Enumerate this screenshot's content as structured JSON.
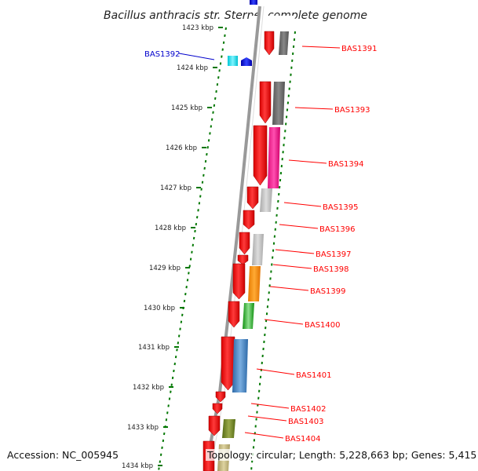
{
  "title": "Bacillus anthracis str. Sterne, complete genome",
  "footer": {
    "accession": "Accession: NC_005945",
    "topology": "Topology: circular; Length: 5,228,663 bp; Genes: 5,415"
  },
  "colors": {
    "gene_forward": "#ff0000",
    "reverse_label": "#0000cc",
    "tick": "#007700",
    "backbone": "#888888"
  },
  "ticks": [
    "1423 kbp",
    "1424 kbp",
    "1425 kbp",
    "1426 kbp",
    "1427 kbp",
    "1428 kbp",
    "1429 kbp",
    "1430 kbp",
    "1431 kbp",
    "1432 kbp",
    "1433 kbp",
    "1434 kbp"
  ],
  "gene_labels": [
    "BAS1391",
    "BAS1392",
    "BAS1393",
    "BAS1394",
    "BAS1395",
    "BAS1396",
    "BAS1397",
    "BAS1398",
    "BAS1399",
    "BAS1400",
    "BAS1401",
    "BAS1402",
    "BAS1403",
    "BAS1404"
  ]
}
